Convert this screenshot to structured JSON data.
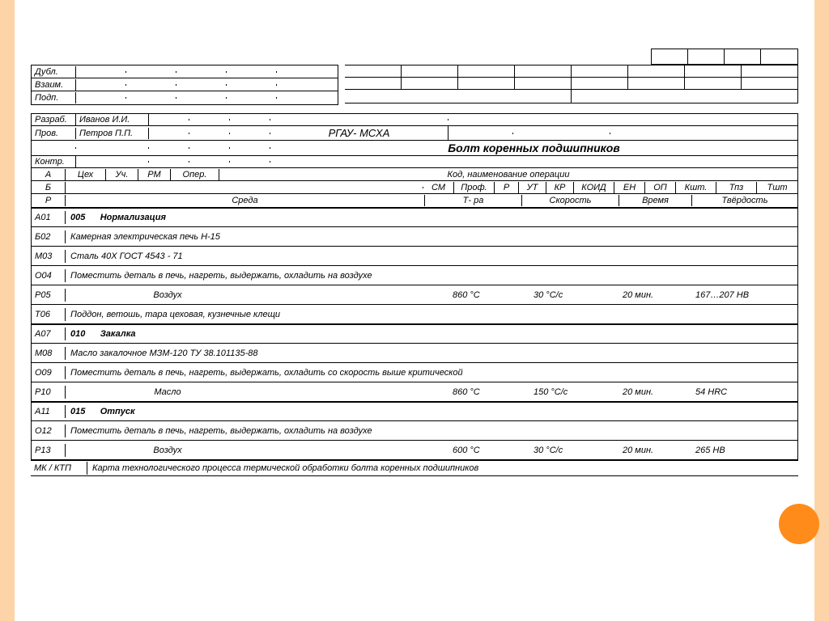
{
  "header": {
    "dubl": "Дубл.",
    "vzaim": "Взаим.",
    "podp": "Подп.",
    "razrab": "Разраб.",
    "razrab_name": "Иванов И.И.",
    "prov": "Пров.",
    "prov_name": "Петров П.П.",
    "kontr": "Контр.",
    "org": "РГАУ- МСХА",
    "part_title": "Болт коренных подшипников"
  },
  "cols": {
    "A": "А",
    "tseh": "Цех",
    "uch": "Уч.",
    "rm": "РМ",
    "oper": "Опер.",
    "kod": "Код, наименование операции",
    "B": "Б",
    "sm": "СМ",
    "prof": "Проф.",
    "r": "Р",
    "ut": "УТ",
    "kr": "КР",
    "koid": "КОИД",
    "en": "ЕН",
    "op": "ОП",
    "ksht": "Кшт.",
    "tpz": "Тпз",
    "tsht": "Тшт",
    "R": "Р",
    "sreda": "Среда",
    "tra": "Т- ра",
    "skorost": "Скорость",
    "vremya": "Время",
    "tverdost": "Твёрдость"
  },
  "rows": [
    {
      "code": "А01",
      "num": "005",
      "opname": "Нормализация"
    },
    {
      "code": "Б02",
      "text": "Камерная электрическая печь Н-15"
    },
    {
      "code": "М03",
      "text": "Сталь 40Х ГОСТ 4543 - 71"
    },
    {
      "code": "О04",
      "text": "Поместить деталь в печь, нагреть, выдержать, охладить на воздухе"
    },
    {
      "code": "Р05",
      "sreda": "Воздух",
      "temp": "860 °С",
      "speed": "30 °С/с",
      "time": "20 мин.",
      "hard": "167…207 НВ"
    },
    {
      "code": "Т06",
      "text": "Поддон, ветошь, тара цеховая, кузнечные клещи"
    },
    {
      "code": "А07",
      "num": "010",
      "opname": "Закалка"
    },
    {
      "code": "М08",
      "text": "Масло закалочное МЗМ-120 ТУ 38.101135-88"
    },
    {
      "code": "О09",
      "text": "Поместить деталь в печь, нагреть, выдержать, охладить со скорость выше критической"
    },
    {
      "code": "Р10",
      "sreda": "Масло",
      "temp": "860 °С",
      "speed": "150 °С/с",
      "time": "20 мин.",
      "hard": "54 HRC"
    },
    {
      "code": "А11",
      "num": "015",
      "opname": "Отпуск"
    },
    {
      "code": "О12",
      "text": "Поместить деталь в печь, нагреть, выдержать, охладить на воздухе"
    },
    {
      "code": "Р13",
      "sreda": "Воздух",
      "temp": "600 °С",
      "speed": "30 °С/с",
      "time": "20 мин.",
      "hard": "265 НВ"
    }
  ],
  "footer": {
    "code": "МК / КТП",
    "text": "Карта технологического процесса термической обработки болта коренных подшипников"
  }
}
